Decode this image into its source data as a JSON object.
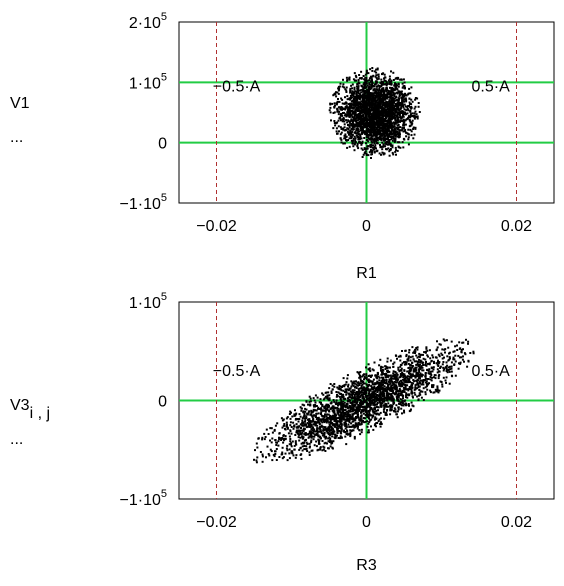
{
  "chart_data": [
    {
      "type": "scatter",
      "ylabel": "V1",
      "ylabel_sub": "",
      "ylabel_dots": "...",
      "xlabel": "R1",
      "xlim": [
        -0.025,
        0.025
      ],
      "ylim": [
        -100000,
        200000
      ],
      "xticks": [
        {
          "value": -0.02,
          "label": "−0.02"
        },
        {
          "value": 0,
          "label": "0"
        },
        {
          "value": 0.02,
          "label": "0.02"
        }
      ],
      "yticks": [
        {
          "value": 200000,
          "mantissa": "2",
          "exp": "5"
        },
        {
          "value": 100000,
          "mantissa": "1",
          "exp": "5"
        },
        {
          "value": 0,
          "mantissa": "0",
          "exp": ""
        },
        {
          "value": -100000,
          "mantissa": "−1",
          "exp": "5"
        }
      ],
      "hlines": [
        {
          "y": 0,
          "color": "#22cc44"
        },
        {
          "y": 100000,
          "color": "#22cc44"
        }
      ],
      "vlines": [
        {
          "x": 0,
          "color": "#22cc44",
          "style": "solid"
        },
        {
          "x": -0.02,
          "color": "#b03030",
          "style": "dashed"
        },
        {
          "x": 0.02,
          "color": "#b03030",
          "style": "dashed"
        }
      ],
      "annotations": [
        {
          "text": "−0.5·A",
          "x": -0.0205,
          "y": 85000
        },
        {
          "text": "0.5·A",
          "x": 0.014,
          "y": 85000
        }
      ],
      "cloud": {
        "center": [
          0.001,
          50000
        ],
        "major_end": [
          0.0055,
          99000
        ],
        "minor_width": 0.0062
      }
    },
    {
      "type": "scatter",
      "ylabel": "V3",
      "ylabel_sub": "i , j",
      "ylabel_dots": "...",
      "xlabel": "R3",
      "xlim": [
        -0.025,
        0.025
      ],
      "ylim": [
        -100000,
        100000
      ],
      "xticks": [
        {
          "value": -0.02,
          "label": "−0.02"
        },
        {
          "value": 0,
          "label": "0"
        },
        {
          "value": 0.02,
          "label": "0.02"
        }
      ],
      "yticks": [
        {
          "value": 100000,
          "mantissa": "1",
          "exp": "5"
        },
        {
          "value": 0,
          "mantissa": "0",
          "exp": ""
        },
        {
          "value": -100000,
          "mantissa": "−1",
          "exp": "5"
        }
      ],
      "hlines": [
        {
          "y": 0,
          "color": "#22cc44"
        }
      ],
      "vlines": [
        {
          "x": 0,
          "color": "#22cc44",
          "style": "solid"
        },
        {
          "x": -0.02,
          "color": "#b03030",
          "style": "dashed"
        },
        {
          "x": 0.02,
          "color": "#b03030",
          "style": "dashed"
        }
      ],
      "annotations": [
        {
          "text": "−0.5·A",
          "x": -0.0205,
          "y": 25000
        },
        {
          "text": "0.5·A",
          "x": 0.014,
          "y": 25000
        }
      ],
      "cloud": {
        "center": [
          -0.0005,
          0
        ],
        "major_end": [
          0.0145,
          58000
        ],
        "minor_width": 0.0042
      }
    }
  ]
}
